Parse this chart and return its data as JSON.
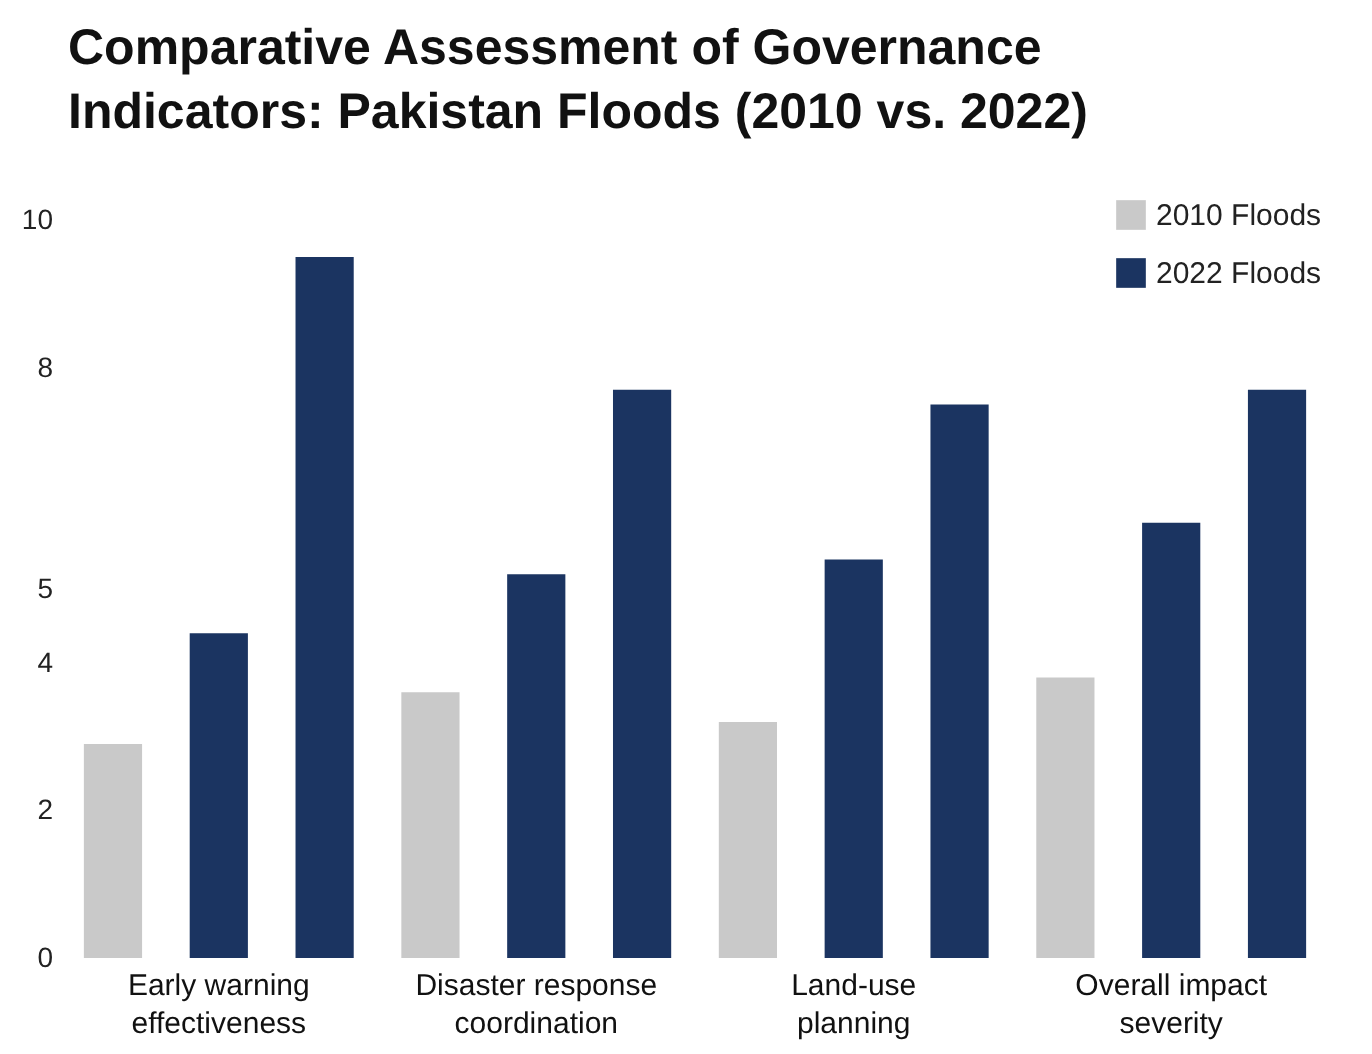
{
  "chart_data": {
    "type": "bar",
    "title": "Comparative Assessment of Governance Indicators: Pakistan Floods (2010 vs. 2022)",
    "categories": [
      "Early warning effectiveness",
      "Disaster response coordination",
      "Land-use planning",
      "Overall impact severity"
    ],
    "series": [
      {
        "name": "2010 Floods",
        "color": "#c9c9c9",
        "values": [
          2.9,
          3.6,
          3.2,
          3.8
        ]
      },
      {
        "name": "2022 Floods",
        "color": "#1b3461",
        "values": [
          4.4,
          5.2,
          5.4,
          5.9
        ]
      },
      {
        "color": "#1b3461",
        "values": [
          9.5,
          7.7,
          7.5,
          7.7
        ]
      }
    ],
    "ylim": [
      0,
      10.3
    ],
    "yticks": [
      0,
      2,
      4,
      5,
      8,
      10
    ],
    "legend": "top right",
    "grid": false
  }
}
